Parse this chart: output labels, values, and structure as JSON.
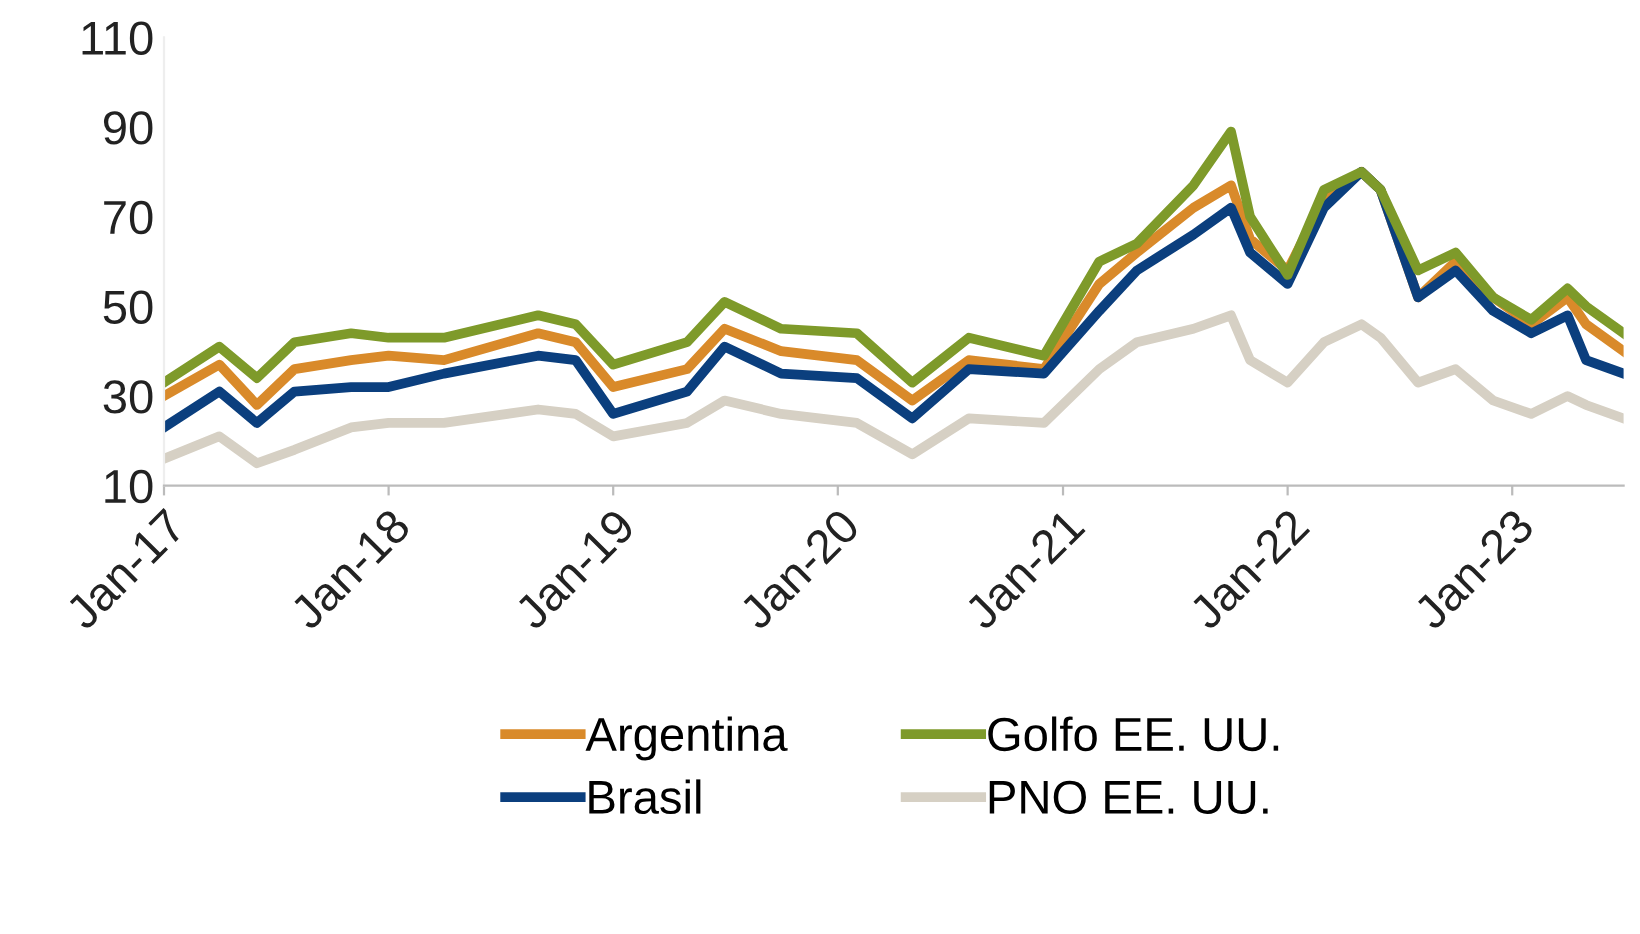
{
  "chart_data": {
    "type": "line",
    "x": [
      "2017-01",
      "2017-04",
      "2017-06",
      "2017-08",
      "2017-11",
      "2018-01",
      "2018-04",
      "2018-09",
      "2018-11",
      "2019-01",
      "2019-05",
      "2019-07",
      "2019-10",
      "2020-02",
      "2020-05",
      "2020-08",
      "2020-12",
      "2021-03",
      "2021-05",
      "2021-08",
      "2021-10",
      "2021-11",
      "2022-01",
      "2022-03",
      "2022-05",
      "2022-06",
      "2022-08",
      "2022-10",
      "2022-12",
      "2023-02",
      "2023-04",
      "2023-05",
      "2023-07"
    ],
    "series": [
      {
        "name": "Argentina",
        "color": "#d98a2a",
        "values": [
          30,
          37,
          28,
          36,
          38,
          39,
          38,
          44,
          42,
          32,
          36,
          45,
          40,
          38,
          29,
          38,
          36,
          55,
          62,
          72,
          77,
          65,
          58,
          74,
          80,
          76,
          52,
          60,
          52,
          46,
          52,
          46,
          40
        ]
      },
      {
        "name": "Brasil",
        "color": "#0b3f7e",
        "values": [
          23,
          31,
          24,
          31,
          32,
          32,
          35,
          39,
          38,
          26,
          31,
          41,
          35,
          34,
          25,
          36,
          35,
          49,
          58,
          66,
          72,
          62,
          55,
          72,
          80,
          76,
          52,
          58,
          49,
          44,
          48,
          38,
          35
        ]
      },
      {
        "name": "Golfo EE. UU.",
        "color": "#7e9a2a",
        "values": [
          33,
          41,
          34,
          42,
          44,
          43,
          43,
          48,
          46,
          37,
          42,
          51,
          45,
          44,
          33,
          43,
          39,
          60,
          64,
          77,
          89,
          70,
          57,
          76,
          80,
          76,
          58,
          62,
          52,
          47,
          54,
          50,
          44
        ]
      },
      {
        "name": "PNO EE. UU.",
        "color": "#d6d0c4",
        "values": [
          16,
          21,
          15,
          18,
          23,
          24,
          24,
          27,
          26,
          21,
          24,
          29,
          26,
          24,
          17,
          25,
          24,
          36,
          42,
          45,
          48,
          38,
          33,
          42,
          46,
          43,
          33,
          36,
          29,
          26,
          30,
          28,
          25
        ]
      }
    ],
    "xlim": [
      "2017-01",
      "2023-07"
    ],
    "xticks": [
      {
        "value": "2017-01",
        "label": "Jan-17"
      },
      {
        "value": "2018-01",
        "label": "Jan-18"
      },
      {
        "value": "2019-01",
        "label": "Jan-19"
      },
      {
        "value": "2020-01",
        "label": "Jan-20"
      },
      {
        "value": "2021-01",
        "label": "Jan-21"
      },
      {
        "value": "2022-01",
        "label": "Jan-22"
      },
      {
        "value": "2023-01",
        "label": "Jan-23"
      }
    ],
    "ylim": [
      10,
      110
    ],
    "yticks": [
      10,
      30,
      50,
      70,
      90,
      110
    ],
    "grid": false,
    "legend": "bottom",
    "line_style": "solid"
  }
}
